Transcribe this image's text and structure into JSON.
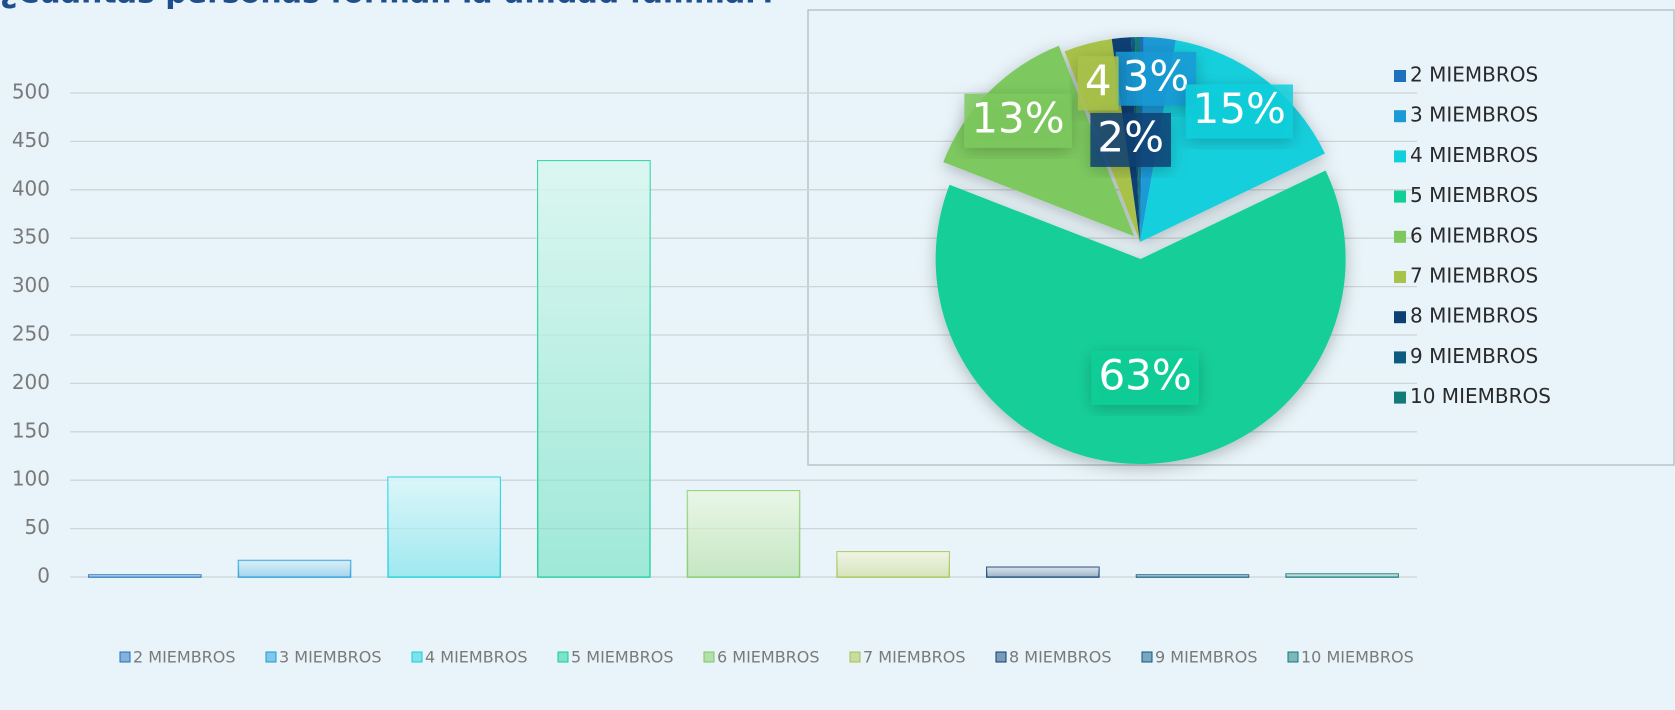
{
  "chart_data": [
    {
      "type": "bar",
      "title": "¿Cuántas personas forman la unidad familiar?",
      "categories": [
        "2 MIEMBROS",
        "3 MIEMBROS",
        "4 MIEMBROS",
        "5 MIEMBROS",
        "6 MIEMBROS",
        "7 MIEMBROS",
        "8 MIEMBROS",
        "9 MIEMBROS",
        "10 MIEMBROS"
      ],
      "values": [
        2,
        17,
        103,
        430,
        89,
        26,
        10,
        2,
        3
      ],
      "colors": [
        "#1f6fbf",
        "#1a9ad6",
        "#12cfdc",
        "#12cf98",
        "#7dc95e",
        "#a8c24a",
        "#0d3f73",
        "#0c5a80",
        "#137a7a"
      ],
      "ylim": [
        0,
        500
      ],
      "yticks": [
        0,
        50,
        100,
        150,
        200,
        250,
        300,
        350,
        400,
        450,
        500
      ],
      "grid": true,
      "legend": "bottom"
    },
    {
      "type": "pie",
      "categories": [
        "2 MIEMBROS",
        "3 MIEMBROS",
        "4 MIEMBROS",
        "5 MIEMBROS",
        "6 MIEMBROS",
        "7 MIEMBROS",
        "8 MIEMBROS",
        "9 MIEMBROS",
        "10 MIEMBROS"
      ],
      "values": [
        0.3,
        2.5,
        15.1,
        63.0,
        13.1,
        3.8,
        1.5,
        0.3,
        0.4
      ],
      "value_labels": [
        null,
        "3%",
        "15%",
        "63%",
        "13%",
        "4",
        "2%",
        null,
        null
      ],
      "colors": [
        "#1f6fbf",
        "#1a9ad6",
        "#12cfdc",
        "#12cf98",
        "#7dc95e",
        "#a8c24a",
        "#0d3f73",
        "#0c5a80",
        "#137a7a"
      ],
      "legend": "right"
    }
  ]
}
